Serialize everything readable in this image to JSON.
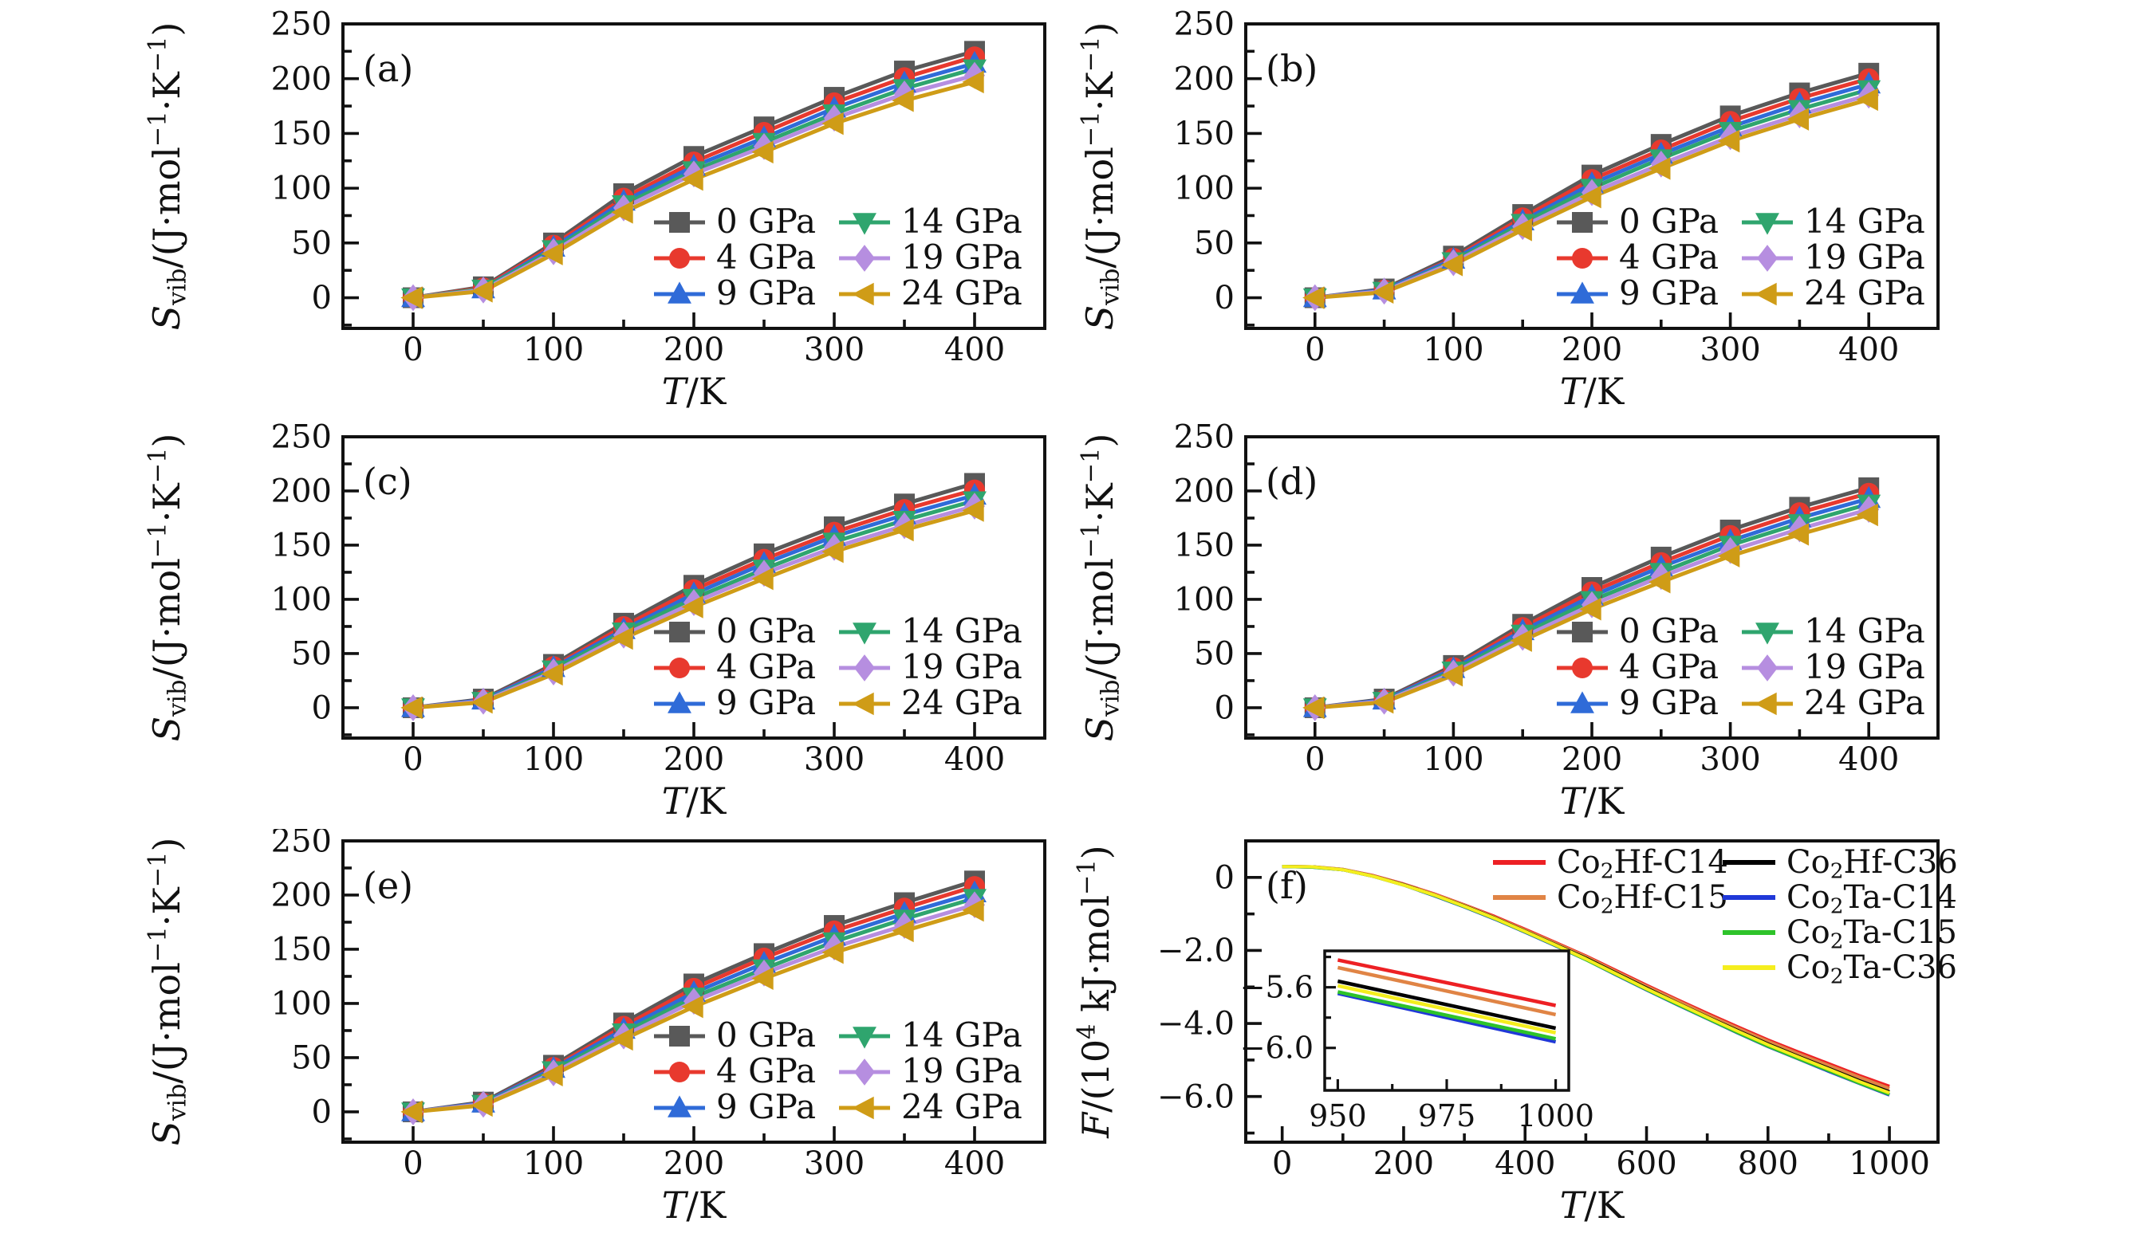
{
  "figure": {
    "background": "#ffffff",
    "axis_color": "#111111"
  },
  "entropy_panels_common": {
    "xlabel_parts": [
      {
        "t": "T",
        "s": "i"
      },
      {
        "t": "/K",
        "s": "n"
      }
    ],
    "ylabel_parts": [
      {
        "t": "S",
        "s": "i"
      },
      {
        "t": "vib",
        "s": "sub"
      },
      {
        "t": "/(J·mol",
        "s": "n"
      },
      {
        "t": "−1",
        "s": "sup"
      },
      {
        "t": "·K",
        "s": "n"
      },
      {
        "t": "−1",
        "s": "sup"
      },
      {
        "t": ")",
        "s": "n"
      }
    ],
    "xlim": [
      -50,
      450
    ],
    "ylim": [
      -28,
      250
    ],
    "xticks": [
      0,
      100,
      200,
      300,
      400
    ],
    "yticks": [
      0,
      50,
      100,
      150,
      200,
      250
    ],
    "xminors": [
      50,
      150,
      250,
      350
    ],
    "yminors": [
      -25,
      25,
      75,
      125,
      175,
      225
    ],
    "x": [
      0,
      50,
      100,
      150,
      200,
      250,
      300,
      350,
      400
    ],
    "series_meta": [
      {
        "name": "0 GPa",
        "color": "#595959",
        "marker": "square"
      },
      {
        "name": "4 GPa",
        "color": "#e8392e",
        "marker": "circle"
      },
      {
        "name": "9 GPa",
        "color": "#2f6bd8",
        "marker": "triangle-up"
      },
      {
        "name": "14 GPa",
        "color": "#2fa56e",
        "marker": "triangle-down"
      },
      {
        "name": "19 GPa",
        "color": "#b68ee0",
        "marker": "diamond"
      },
      {
        "name": "24 GPa",
        "color": "#cf9c17",
        "marker": "triangle-left"
      }
    ]
  },
  "chart_data": [
    {
      "id": "a",
      "label": "(a)",
      "type": "line",
      "xlabel": "T/K",
      "ylabel": "S_vib/(J·mol−1·K−1)",
      "series": [
        {
          "name": "0 GPa",
          "values": [
            0,
            10,
            50,
            95,
            129,
            156,
            183,
            207,
            225
          ]
        },
        {
          "name": "4 GPa",
          "values": [
            0,
            9,
            48,
            91,
            124,
            151,
            178,
            201,
            220
          ]
        },
        {
          "name": "9 GPa",
          "values": [
            0,
            8,
            46,
            88,
            120,
            146,
            173,
            196,
            214
          ]
        },
        {
          "name": "14 GPa",
          "values": [
            0,
            8,
            44,
            85,
            116,
            142,
            168,
            191,
            209
          ]
        },
        {
          "name": "19 GPa",
          "values": [
            0,
            7,
            42,
            82,
            113,
            138,
            164,
            186,
            203
          ]
        },
        {
          "name": "24 GPa",
          "values": [
            0,
            6,
            40,
            78,
            108,
            133,
            159,
            180,
            197
          ]
        }
      ]
    },
    {
      "id": "b",
      "label": "(b)",
      "type": "line",
      "xlabel": "T/K",
      "ylabel": "S_vib/(J·mol−1·K−1)",
      "series": [
        {
          "name": "0 GPa",
          "values": [
            0,
            8,
            38,
            76,
            112,
            140,
            166,
            187,
            205
          ]
        },
        {
          "name": "4 GPa",
          "values": [
            0,
            7,
            36,
            73,
            108,
            135,
            161,
            182,
            200
          ]
        },
        {
          "name": "9 GPa",
          "values": [
            0,
            7,
            35,
            70,
            104,
            131,
            156,
            177,
            195
          ]
        },
        {
          "name": "14 GPa",
          "values": [
            0,
            6,
            33,
            68,
            100,
            127,
            152,
            172,
            190
          ]
        },
        {
          "name": "19 GPa",
          "values": [
            0,
            6,
            32,
            65,
            96,
            122,
            147,
            167,
            185
          ]
        },
        {
          "name": "24 GPa",
          "values": [
            0,
            5,
            30,
            62,
            92,
            118,
            143,
            163,
            181
          ]
        }
      ]
    },
    {
      "id": "c",
      "label": "(c)",
      "type": "line",
      "xlabel": "T/K",
      "ylabel": "S_vib/(J·mol−1·K−1)",
      "series": [
        {
          "name": "0 GPa",
          "values": [
            0,
            8,
            40,
            78,
            113,
            142,
            167,
            188,
            207
          ]
        },
        {
          "name": "4 GPa",
          "values": [
            0,
            7,
            38,
            75,
            109,
            137,
            162,
            183,
            201
          ]
        },
        {
          "name": "9 GPa",
          "values": [
            0,
            7,
            37,
            72,
            105,
            133,
            158,
            178,
            196
          ]
        },
        {
          "name": "14 GPa",
          "values": [
            0,
            6,
            35,
            70,
            101,
            128,
            153,
            173,
            191
          ]
        },
        {
          "name": "19 GPa",
          "values": [
            0,
            6,
            33,
            67,
            97,
            124,
            148,
            168,
            186
          ]
        },
        {
          "name": "24 GPa",
          "values": [
            0,
            5,
            31,
            64,
            93,
            119,
            144,
            164,
            182
          ]
        }
      ]
    },
    {
      "id": "d",
      "label": "(d)",
      "type": "line",
      "xlabel": "T/K",
      "ylabel": "S_vib/(J·mol−1·K−1)",
      "series": [
        {
          "name": "0 GPa",
          "values": [
            0,
            8,
            39,
            77,
            111,
            139,
            164,
            185,
            203
          ]
        },
        {
          "name": "4 GPa",
          "values": [
            0,
            7,
            37,
            74,
            107,
            134,
            159,
            180,
            198
          ]
        },
        {
          "name": "9 GPa",
          "values": [
            0,
            7,
            36,
            71,
            103,
            130,
            154,
            175,
            193
          ]
        },
        {
          "name": "14 GPa",
          "values": [
            0,
            6,
            34,
            68,
            99,
            125,
            150,
            170,
            188
          ]
        },
        {
          "name": "19 GPa",
          "values": [
            0,
            6,
            32,
            65,
            95,
            121,
            145,
            165,
            183
          ]
        },
        {
          "name": "24 GPa",
          "values": [
            0,
            5,
            30,
            62,
            91,
            116,
            140,
            160,
            178
          ]
        }
      ]
    },
    {
      "id": "e",
      "label": "(e)",
      "type": "line",
      "xlabel": "T/K",
      "ylabel": "S_vib/(J·mol−1·K−1)",
      "series": [
        {
          "name": "0 GPa",
          "values": [
            0,
            9,
            43,
            82,
            118,
            146,
            172,
            193,
            213
          ]
        },
        {
          "name": "4 GPa",
          "values": [
            0,
            8,
            41,
            79,
            114,
            142,
            167,
            188,
            208
          ]
        },
        {
          "name": "9 GPa",
          "values": [
            0,
            8,
            40,
            76,
            110,
            137,
            162,
            183,
            202
          ]
        },
        {
          "name": "14 GPa",
          "values": [
            0,
            7,
            38,
            73,
            106,
            132,
            157,
            178,
            197
          ]
        },
        {
          "name": "19 GPa",
          "values": [
            0,
            7,
            36,
            70,
            102,
            128,
            152,
            172,
            191
          ]
        },
        {
          "name": "24 GPa",
          "values": [
            0,
            6,
            34,
            67,
            97,
            123,
            147,
            167,
            186
          ]
        }
      ]
    },
    {
      "id": "f",
      "label": "(f)",
      "type": "line",
      "xlabel": "T/K",
      "ylabel": "F/(10^4 kJ·mol−1)",
      "xlabel_parts": [
        {
          "t": "T",
          "s": "i"
        },
        {
          "t": "/K",
          "s": "n"
        }
      ],
      "ylabel_parts": [
        {
          "t": "F",
          "s": "i"
        },
        {
          "t": "/(10",
          "s": "n"
        },
        {
          "t": "4",
          "s": "sup"
        },
        {
          "t": " kJ·mol",
          "s": "n"
        },
        {
          "t": "−1",
          "s": "sup"
        },
        {
          "t": ")",
          "s": "n"
        }
      ],
      "xlim": [
        -60,
        1080
      ],
      "ylim": [
        -7.25,
        1.0
      ],
      "xticks": [
        0,
        200,
        400,
        600,
        800,
        1000
      ],
      "yticks": [
        0,
        -2,
        -4,
        -6
      ],
      "ytick_labels": [
        "0",
        "−2.0",
        "−4.0",
        "−6.0"
      ],
      "xminors": [
        100,
        300,
        500,
        700,
        900
      ],
      "yminors": [
        -1,
        -3,
        -5,
        -7
      ],
      "x": [
        0,
        50,
        100,
        150,
        200,
        250,
        300,
        350,
        400,
        450,
        500,
        550,
        600,
        650,
        700,
        750,
        800,
        850,
        900,
        950,
        1000
      ],
      "series_meta": [
        {
          "name": "Co2Hf-C14",
          "parts": [
            {
              "t": "Co",
              "s": "n"
            },
            {
              "t": "2",
              "s": "sub"
            },
            {
              "t": "Hf-C14",
              "s": "n"
            }
          ],
          "color": "#ed2024"
        },
        {
          "name": "Co2Hf-C15",
          "parts": [
            {
              "t": "Co",
              "s": "n"
            },
            {
              "t": "2",
              "s": "sub"
            },
            {
              "t": "Hf-C15",
              "s": "n"
            }
          ],
          "color": "#e08445"
        },
        {
          "name": "Co2Hf-C36",
          "parts": [
            {
              "t": "Co",
              "s": "n"
            },
            {
              "t": "2",
              "s": "sub"
            },
            {
              "t": "Hf-C36",
              "s": "n"
            }
          ],
          "color": "#000000"
        },
        {
          "name": "Co2Ta-C14",
          "parts": [
            {
              "t": "Co",
              "s": "n"
            },
            {
              "t": "2",
              "s": "sub"
            },
            {
              "t": "Ta-C14",
              "s": "n"
            }
          ],
          "color": "#2038d8"
        },
        {
          "name": "Co2Ta-C15",
          "parts": [
            {
              "t": "Co",
              "s": "n"
            },
            {
              "t": "2",
              "s": "sub"
            },
            {
              "t": "Ta-C15",
              "s": "n"
            }
          ],
          "color": "#2ec32a"
        },
        {
          "name": "Co2Ta-C36",
          "parts": [
            {
              "t": "Co",
              "s": "n"
            },
            {
              "t": "2",
              "s": "sub"
            },
            {
              "t": "Ta-C36",
              "s": "n"
            }
          ],
          "color": "#f5ee1e"
        }
      ],
      "series": [
        {
          "name": "Co2Hf-C14",
          "values": [
            0.3,
            0.29,
            0.22,
            0.05,
            -0.18,
            -0.45,
            -0.75,
            -1.07,
            -1.42,
            -1.78,
            -2.15,
            -2.55,
            -2.95,
            -3.34,
            -3.72,
            -4.09,
            -4.45,
            -4.78,
            -5.1,
            -5.42,
            -5.72
          ]
        },
        {
          "name": "Co2Hf-C15",
          "values": [
            0.3,
            0.29,
            0.22,
            0.04,
            -0.19,
            -0.46,
            -0.76,
            -1.09,
            -1.44,
            -1.8,
            -2.17,
            -2.58,
            -2.98,
            -3.37,
            -3.76,
            -4.13,
            -4.49,
            -4.83,
            -5.15,
            -5.47,
            -5.78
          ]
        },
        {
          "name": "Co2Hf-C36",
          "values": [
            0.3,
            0.29,
            0.21,
            0.03,
            -0.2,
            -0.48,
            -0.78,
            -1.11,
            -1.47,
            -1.84,
            -2.21,
            -2.62,
            -3.03,
            -3.43,
            -3.82,
            -4.19,
            -4.56,
            -4.9,
            -5.23,
            -5.56,
            -5.87
          ]
        },
        {
          "name": "Co2Ta-C14",
          "values": [
            0.3,
            0.28,
            0.21,
            0.03,
            -0.21,
            -0.5,
            -0.81,
            -1.14,
            -1.5,
            -1.87,
            -2.25,
            -2.67,
            -3.08,
            -3.48,
            -3.87,
            -4.26,
            -4.63,
            -4.97,
            -5.31,
            -5.64,
            -5.96
          ]
        },
        {
          "name": "Co2Ta-C15",
          "values": [
            0.3,
            0.28,
            0.21,
            0.03,
            -0.21,
            -0.49,
            -0.8,
            -1.13,
            -1.49,
            -1.86,
            -2.25,
            -2.66,
            -3.07,
            -3.47,
            -3.86,
            -4.25,
            -4.62,
            -4.96,
            -5.29,
            -5.63,
            -5.94
          ]
        },
        {
          "name": "Co2Ta-C36",
          "values": [
            0.3,
            0.29,
            0.21,
            0.03,
            -0.21,
            -0.48,
            -0.79,
            -1.12,
            -1.48,
            -1.85,
            -2.23,
            -2.64,
            -3.05,
            -3.44,
            -3.83,
            -4.21,
            -4.58,
            -4.92,
            -5.25,
            -5.59,
            -5.9
          ]
        }
      ],
      "inset": {
        "xlim": [
          947,
          1003
        ],
        "ylim": [
          -6.28,
          -5.36
        ],
        "xticks": [
          950,
          975,
          1000
        ],
        "yticks": [
          -5.6,
          -6.0
        ],
        "ytick_labels": [
          "−5.6",
          "−6.0"
        ],
        "xminors": [
          962.5,
          987.5
        ],
        "yminors": [
          -5.4,
          -5.8,
          -6.2
        ]
      }
    }
  ]
}
